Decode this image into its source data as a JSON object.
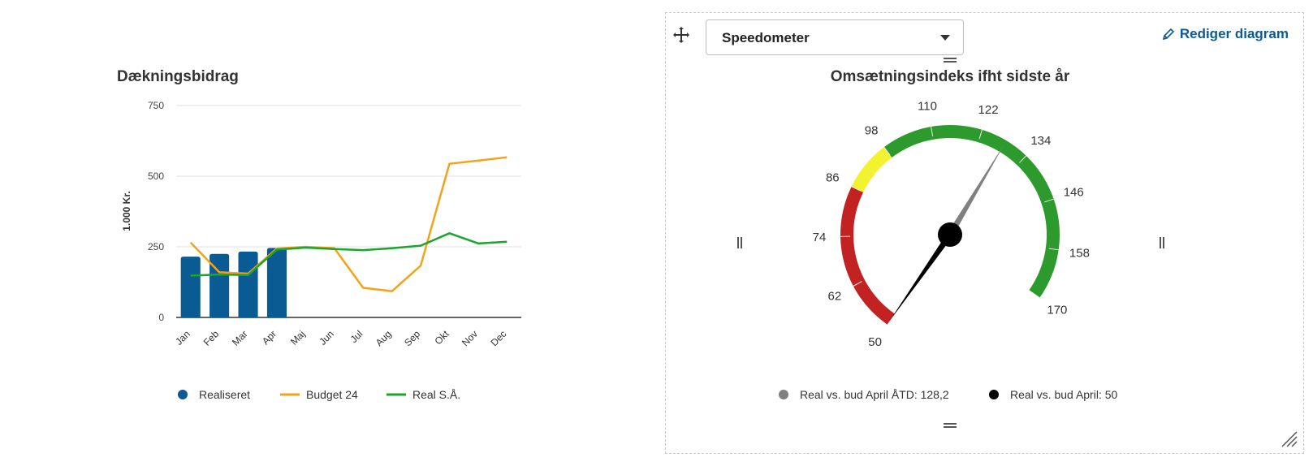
{
  "bar_chart": {
    "chart_data": {
      "type": "bar+line",
      "title": "Dækningsbidrag",
      "ylabel": "1.000 Kr.",
      "xlabel": "",
      "ylim": [
        0,
        750
      ],
      "yticks": [
        0,
        250,
        500,
        750
      ],
      "grid": true,
      "legend_position": "bottom",
      "categories": [
        "Jan",
        "Feb",
        "Mar",
        "Apr",
        "Maj",
        "Jun",
        "Jul",
        "Aug",
        "Sep",
        "Okt",
        "Nov",
        "Dec"
      ],
      "series": [
        {
          "name": "Realiseret",
          "type": "bar",
          "color": "#0a5a94",
          "values": [
            215,
            225,
            233,
            246,
            null,
            null,
            null,
            null,
            null,
            null,
            null,
            null
          ]
        },
        {
          "name": "Budget 24",
          "type": "line",
          "color": "#f5a21b",
          "values": [
            265,
            160,
            155,
            244,
            250,
            245,
            105,
            93,
            183,
            544,
            555,
            567
          ]
        },
        {
          "name": "Real S.Å.",
          "type": "line",
          "color": "#1aa52b",
          "values": [
            148,
            152,
            150,
            240,
            247,
            242,
            238,
            245,
            254,
            298,
            262,
            268
          ]
        }
      ]
    }
  },
  "gauge": {
    "toolbar": {
      "move_icon": "move-icon",
      "dropdown_value": "Speedometer",
      "edit_label": "Rediger diagram",
      "edit_icon": "pencil-icon"
    },
    "chart_data": {
      "type": "gauge",
      "title": "Omsætningsindeks ifht sidste år",
      "min": 50,
      "max": 170,
      "tick_labels": [
        50,
        62,
        74,
        86,
        98,
        110,
        122,
        134,
        146,
        158,
        170
      ],
      "bands": [
        {
          "from": 50,
          "to": 86,
          "color": "#c22222"
        },
        {
          "from": 86,
          "to": 98,
          "color": "#f2f22e"
        },
        {
          "from": 98,
          "to": 170,
          "color": "#2d9a2d"
        }
      ],
      "series": [
        {
          "name": "Real vs. bud April ÅTD: 128,2",
          "value": 128.2,
          "color": "#808080"
        },
        {
          "name": "Real vs. bud April: 50",
          "value": 50,
          "color": "#000000"
        }
      ],
      "legend_position": "bottom"
    }
  }
}
